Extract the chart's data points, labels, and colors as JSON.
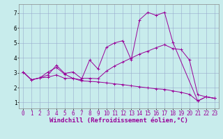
{
  "background_color": "#c8ecec",
  "line_color": "#990099",
  "grid_color": "#99aacc",
  "xlabel": "Windchill (Refroidissement éolien,°C)",
  "xlabel_fontsize": 6.5,
  "tick_fontsize": 5.5,
  "xlim": [
    -0.5,
    23.5
  ],
  "ylim": [
    0.6,
    7.6
  ],
  "yticks": [
    1,
    2,
    3,
    4,
    5,
    6,
    7
  ],
  "xticks": [
    0,
    1,
    2,
    3,
    4,
    5,
    6,
    7,
    8,
    9,
    10,
    11,
    12,
    13,
    14,
    15,
    16,
    17,
    18,
    19,
    20,
    21,
    22,
    23
  ],
  "lines": [
    {
      "x": [
        0,
        1,
        2,
        3,
        4,
        5,
        6,
        7,
        8,
        9,
        10,
        11,
        12,
        13,
        14,
        15,
        16,
        17,
        18,
        21,
        22,
        23
      ],
      "y": [
        3.05,
        2.52,
        2.65,
        3.05,
        3.35,
        2.9,
        2.62,
        2.52,
        3.85,
        3.25,
        4.7,
        5.0,
        5.15,
        3.85,
        6.55,
        7.05,
        6.85,
        7.05,
        5.05,
        1.1,
        1.38,
        1.28
      ]
    },
    {
      "x": [
        0,
        1,
        2,
        3,
        4,
        5,
        6,
        7,
        8,
        9,
        10,
        11,
        12,
        13,
        14,
        15,
        16,
        17,
        18,
        19,
        20,
        21,
        22,
        23
      ],
      "y": [
        3.05,
        2.52,
        2.65,
        2.7,
        2.85,
        2.62,
        2.62,
        2.45,
        2.42,
        2.38,
        2.32,
        2.25,
        2.2,
        2.12,
        2.05,
        1.98,
        1.92,
        1.88,
        1.78,
        1.68,
        1.55,
        1.1,
        1.38,
        1.28
      ]
    },
    {
      "x": [
        0,
        1,
        2,
        3,
        4,
        5,
        6,
        7,
        8,
        9,
        10,
        11,
        12,
        13,
        14,
        15,
        16,
        17,
        18,
        19,
        20,
        21,
        22,
        23
      ],
      "y": [
        3.05,
        2.52,
        2.65,
        2.85,
        3.5,
        2.95,
        3.05,
        2.62,
        2.62,
        2.6,
        3.1,
        3.45,
        3.72,
        3.98,
        4.25,
        4.45,
        4.68,
        4.88,
        4.62,
        4.55,
        3.85,
        1.52,
        1.38,
        1.28
      ]
    }
  ]
}
